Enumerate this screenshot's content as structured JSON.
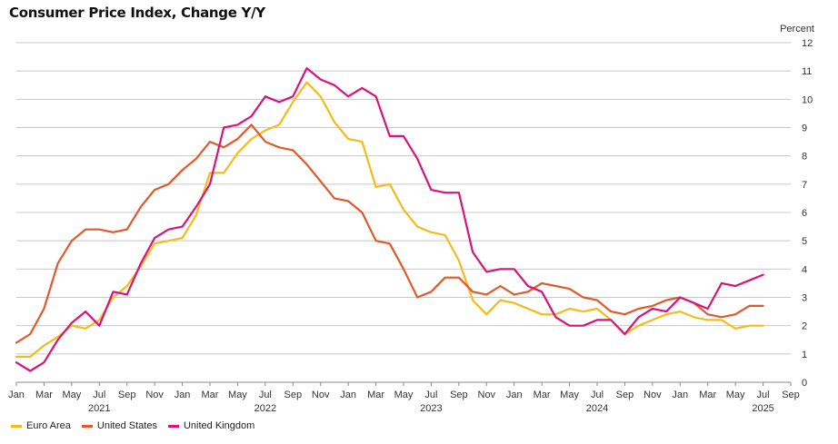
{
  "title": "Consumer Price Index, Change Y/Y",
  "y_unit_label": "Percent",
  "chart_data": {
    "type": "line",
    "title": "Consumer Price Index, Change Y/Y",
    "ylabel": "Percent",
    "ylim": [
      0,
      12
    ],
    "yticks": [
      0,
      1,
      2,
      3,
      4,
      5,
      6,
      7,
      8,
      9,
      10,
      11,
      12
    ],
    "grid": true,
    "legend": "bottom-left",
    "x_months": [
      "2021-01",
      "2021-02",
      "2021-03",
      "2021-04",
      "2021-05",
      "2021-06",
      "2021-07",
      "2021-08",
      "2021-09",
      "2021-10",
      "2021-11",
      "2021-12",
      "2022-01",
      "2022-02",
      "2022-03",
      "2022-04",
      "2022-05",
      "2022-06",
      "2022-07",
      "2022-08",
      "2022-09",
      "2022-10",
      "2022-11",
      "2022-12",
      "2023-01",
      "2023-02",
      "2023-03",
      "2023-04",
      "2023-05",
      "2023-06",
      "2023-07",
      "2023-08",
      "2023-09",
      "2023-10",
      "2023-11",
      "2023-12",
      "2024-01",
      "2024-02",
      "2024-03",
      "2024-04",
      "2024-05",
      "2024-06",
      "2024-07",
      "2024-08",
      "2024-09",
      "2024-10",
      "2024-11",
      "2024-12",
      "2025-01",
      "2025-02",
      "2025-03",
      "2025-04",
      "2025-05",
      "2025-06",
      "2025-07",
      "2025-08"
    ],
    "x_tick_labels": [
      "Jan",
      "Mar",
      "May",
      "Jul",
      "Sep",
      "Nov",
      "Jan",
      "Mar",
      "May",
      "Jul",
      "Sep",
      "Nov",
      "Jan",
      "Mar",
      "May",
      "Jul",
      "Sep",
      "Nov",
      "Jan",
      "Mar",
      "May",
      "Jul",
      "Sep",
      "Nov",
      "Jan",
      "Mar",
      "May",
      "Jul",
      "Sep"
    ],
    "year_labels": [
      "2021",
      "2022",
      "2023",
      "2024",
      "2025"
    ],
    "series": [
      {
        "name": "Euro Area",
        "color": "#F2BC1B",
        "values": [
          0.9,
          0.9,
          1.3,
          1.6,
          2.0,
          1.9,
          2.2,
          3.0,
          3.4,
          4.1,
          4.9,
          5.0,
          5.1,
          5.9,
          7.4,
          7.4,
          8.1,
          8.6,
          8.9,
          9.1,
          9.9,
          10.6,
          10.1,
          9.2,
          8.6,
          8.5,
          6.9,
          7.0,
          6.1,
          5.5,
          5.3,
          5.2,
          4.3,
          2.9,
          2.4,
          2.9,
          2.8,
          2.6,
          2.4,
          2.4,
          2.6,
          2.5,
          2.6,
          2.2,
          1.7,
          2.0,
          2.2,
          2.4,
          2.5,
          2.3,
          2.2,
          2.2,
          1.9,
          2.0,
          2.0,
          null
        ]
      },
      {
        "name": "United States",
        "color": "#E0592A",
        "values": [
          1.4,
          1.7,
          2.6,
          4.2,
          5.0,
          5.4,
          5.4,
          5.3,
          5.4,
          6.2,
          6.8,
          7.0,
          7.5,
          7.9,
          8.5,
          8.3,
          8.6,
          9.1,
          8.5,
          8.3,
          8.2,
          7.7,
          7.1,
          6.5,
          6.4,
          6.0,
          5.0,
          4.9,
          4.0,
          3.0,
          3.2,
          3.7,
          3.7,
          3.2,
          3.1,
          3.4,
          3.1,
          3.2,
          3.5,
          3.4,
          3.3,
          3.0,
          2.9,
          2.5,
          2.4,
          2.6,
          2.7,
          2.9,
          3.0,
          2.8,
          2.4,
          2.3,
          2.4,
          2.7,
          2.7,
          null
        ]
      },
      {
        "name": "United Kingdom",
        "color": "#D6137E",
        "values": [
          0.7,
          0.4,
          0.7,
          1.5,
          2.1,
          2.5,
          2.0,
          3.2,
          3.1,
          4.2,
          5.1,
          5.4,
          5.5,
          6.2,
          7.0,
          9.0,
          9.1,
          9.4,
          10.1,
          9.9,
          10.1,
          11.1,
          10.7,
          10.5,
          10.1,
          10.4,
          10.1,
          8.7,
          8.7,
          7.9,
          6.8,
          6.7,
          6.7,
          4.6,
          3.9,
          4.0,
          4.0,
          3.4,
          3.2,
          2.3,
          2.0,
          2.0,
          2.2,
          2.2,
          1.7,
          2.3,
          2.6,
          2.5,
          3.0,
          2.8,
          2.6,
          3.5,
          3.4,
          3.6,
          3.8,
          null
        ]
      }
    ]
  },
  "legend": [
    {
      "label": "Euro Area",
      "color": "#F2BC1B"
    },
    {
      "label": "United States",
      "color": "#E0592A"
    },
    {
      "label": "United Kingdom",
      "color": "#D6137E"
    }
  ]
}
